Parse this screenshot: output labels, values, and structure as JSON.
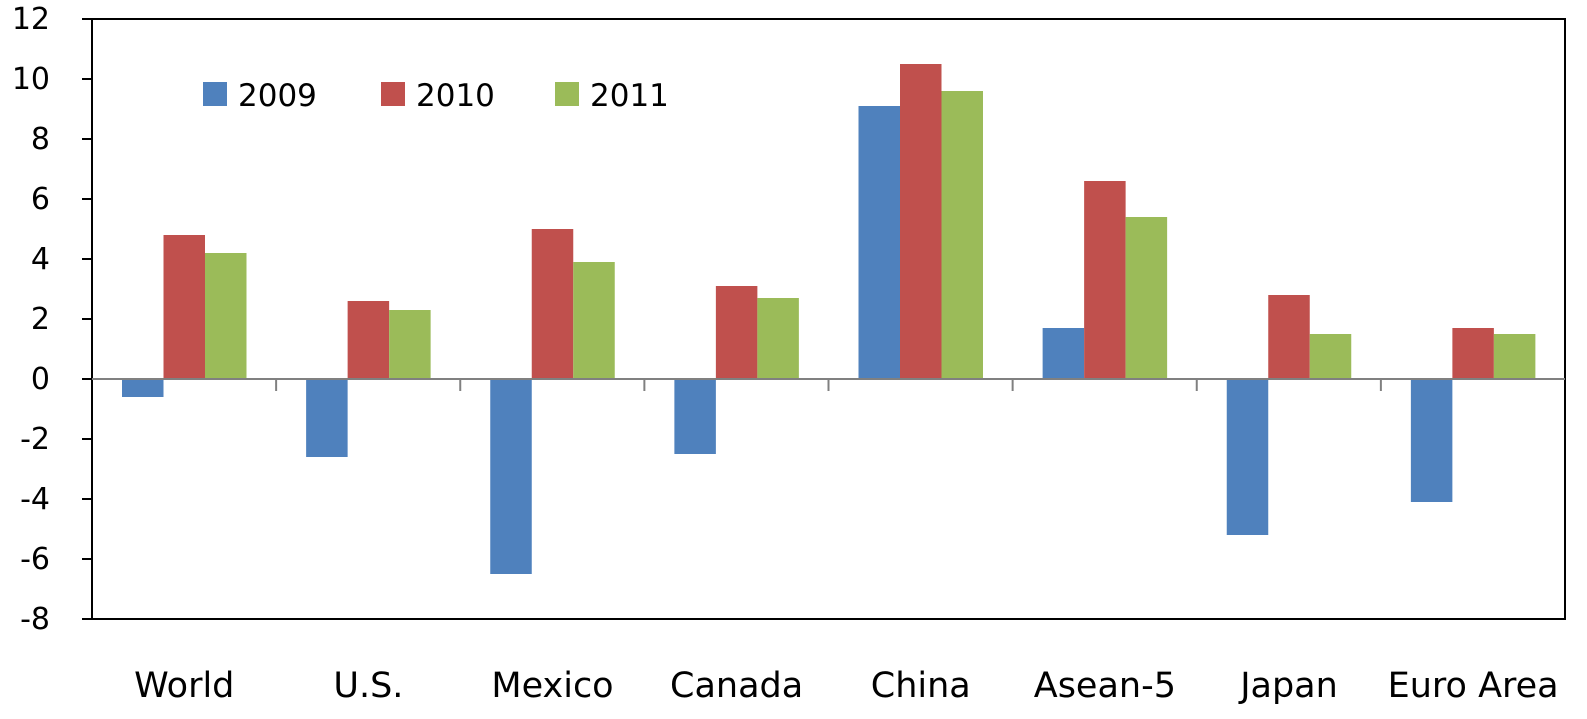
{
  "chart_data": {
    "type": "bar",
    "title": "",
    "xlabel": "",
    "ylabel": "",
    "categories": [
      "World",
      "U.S.",
      "Mexico",
      "Canada",
      "China",
      "Asean-5",
      "Japan",
      "Euro Area"
    ],
    "series": [
      {
        "name": "2009",
        "color": "#4F81BD",
        "values": [
          -0.6,
          -2.6,
          -6.5,
          -2.5,
          9.1,
          1.7,
          -5.2,
          -4.1
        ]
      },
      {
        "name": "2010",
        "color": "#C0504D",
        "values": [
          4.8,
          2.6,
          5.0,
          3.1,
          10.5,
          6.6,
          2.8,
          1.7
        ]
      },
      {
        "name": "2011",
        "color": "#9BBB59",
        "values": [
          4.2,
          2.3,
          3.9,
          2.7,
          9.6,
          5.4,
          1.5,
          1.5
        ]
      }
    ],
    "ylim": [
      -8,
      12
    ],
    "yticks": [
      12,
      10,
      8,
      6,
      4,
      2,
      0,
      -2,
      -4,
      -6,
      -8
    ],
    "grid": false,
    "legend_position": "top-left"
  }
}
